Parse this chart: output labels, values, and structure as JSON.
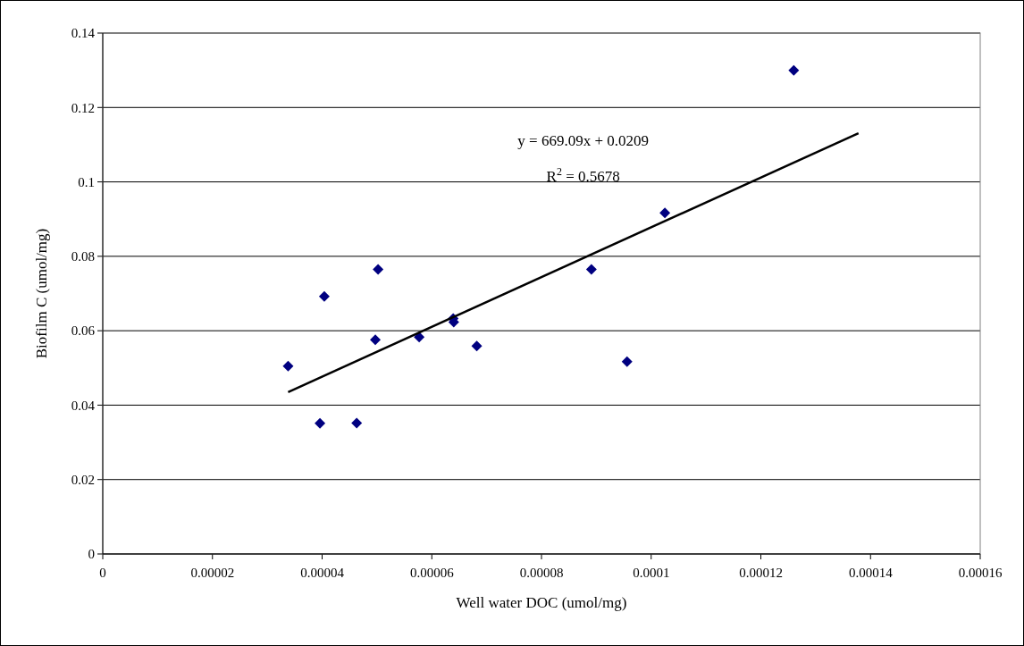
{
  "chart_data": {
    "type": "scatter",
    "xlabel": "Well water DOC (umol/mg)",
    "ylabel": "Biofilm C (umol/mg)",
    "xlim": [
      0,
      0.00016
    ],
    "xticks": [
      0,
      {
        "value": 2e-05,
        "label": "0.00002"
      },
      {
        "value": 4e-05,
        "label": "0.00004"
      },
      {
        "value": 6e-05,
        "label": "0.00006"
      },
      {
        "value": 8e-05,
        "label": "0.00008"
      },
      {
        "value": 0.0001,
        "label": "0.0001"
      },
      {
        "value": 0.00012,
        "label": "0.00012"
      },
      {
        "value": 0.00014,
        "label": "0.00014"
      },
      {
        "value": 0.00016,
        "label": "0.00016"
      }
    ],
    "ylim": [
      0,
      0.14
    ],
    "yticks": [
      0,
      0.02,
      0.04,
      0.06,
      0.08,
      0.1,
      0.12,
      0.14
    ],
    "grid": "y",
    "annotations": [
      "y = 669.09x + 0.0209",
      "R$^{2}$ = 0.5678"
    ],
    "series": [
      {
        "marker": "diamond",
        "color": "#000080",
        "x": [
          3.38e-05,
          4.04e-05,
          5.02e-05,
          4.97e-05,
          5.77e-05,
          6.39e-05,
          6.4e-05,
          6.82e-05,
          3.96e-05,
          4.63e-05,
          0.000126,
          0.0001025,
          8.91e-05,
          9.56e-05
        ],
        "values": [
          0.0505,
          0.0692,
          0.0765,
          0.0576,
          0.0583,
          0.0633,
          0.0623,
          0.0559,
          0.0351,
          0.0352,
          0.13,
          0.0917,
          0.0765,
          0.0517
        ]
      },
      {
        "type": "line",
        "color": "#000000",
        "line_style": "solid",
        "x": [
          3.38e-05,
          0.0001378
        ],
        "values": [
          0.0435,
          0.1131
        ]
      }
    ]
  }
}
